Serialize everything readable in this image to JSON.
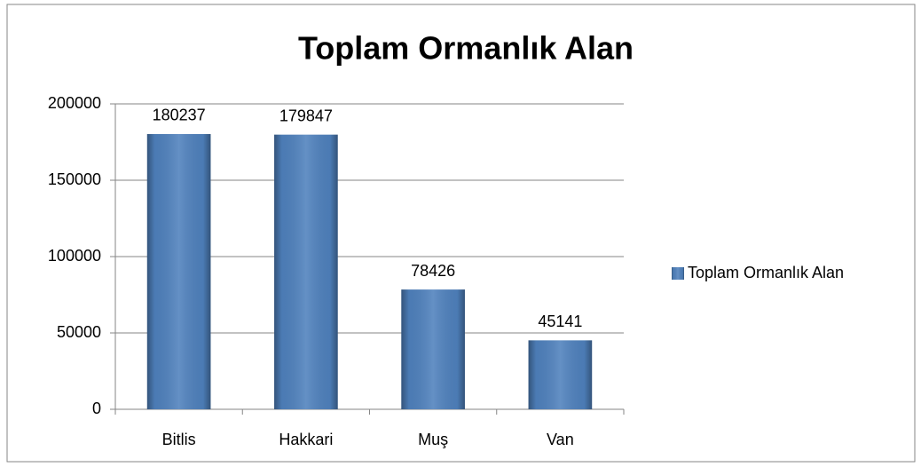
{
  "chart_data": {
    "type": "bar",
    "title": "Toplam Ormanlık Alan",
    "categories": [
      "Bitlis",
      "Hakkari",
      "Muş",
      "Van"
    ],
    "series": [
      {
        "name": "Toplam Ormanlık Alan",
        "color": "#4f81bd",
        "values": [
          180237,
          179847,
          78426,
          45141
        ]
      }
    ],
    "ylim": [
      0,
      200000
    ],
    "yticks": [
      0,
      50000,
      100000,
      150000,
      200000
    ],
    "grid": true,
    "legend": "right"
  }
}
